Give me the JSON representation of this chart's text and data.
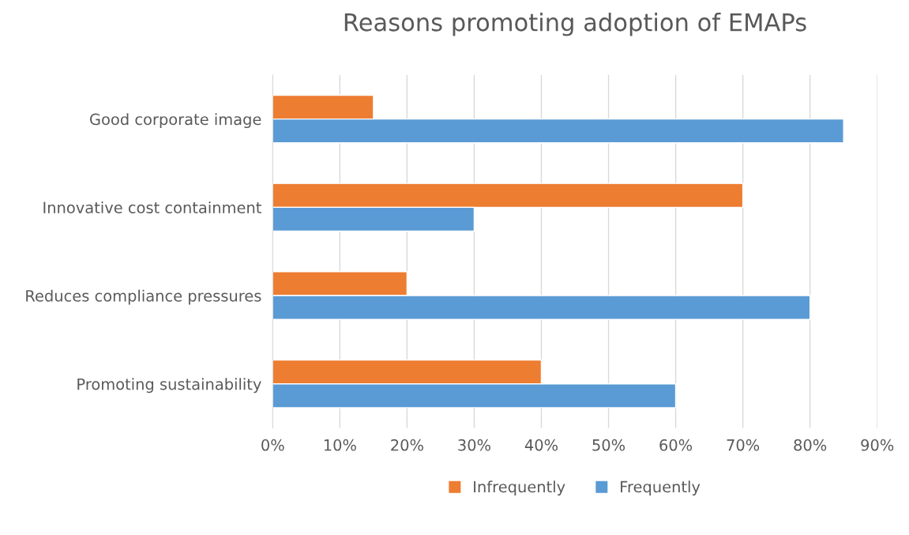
{
  "chart_data": {
    "type": "bar",
    "orientation": "horizontal",
    "title": "Reasons promoting adoption of EMAPs",
    "categories": [
      "Good corporate image",
      "Innovative cost containment",
      "Reduces compliance pressures",
      "Promoting sustainability"
    ],
    "series": [
      {
        "name": "Infrequently",
        "color": "#ed7d31",
        "values": [
          15,
          70,
          20,
          40
        ]
      },
      {
        "name": "Frequently",
        "color": "#5b9bd5",
        "values": [
          85,
          30,
          80,
          60
        ]
      }
    ],
    "xlim": [
      0,
      90
    ],
    "xticks": [
      {
        "value": 0,
        "label": "0%"
      },
      {
        "value": 10,
        "label": "10%"
      },
      {
        "value": 20,
        "label": "20%"
      },
      {
        "value": 30,
        "label": "30%"
      },
      {
        "value": 40,
        "label": "40%"
      },
      {
        "value": 50,
        "label": "50%"
      },
      {
        "value": 60,
        "label": "60%"
      },
      {
        "value": 70,
        "label": "70%"
      },
      {
        "value": 80,
        "label": "80%"
      },
      {
        "value": 90,
        "label": "90%"
      }
    ],
    "grid": "x",
    "legend": "bottom"
  }
}
